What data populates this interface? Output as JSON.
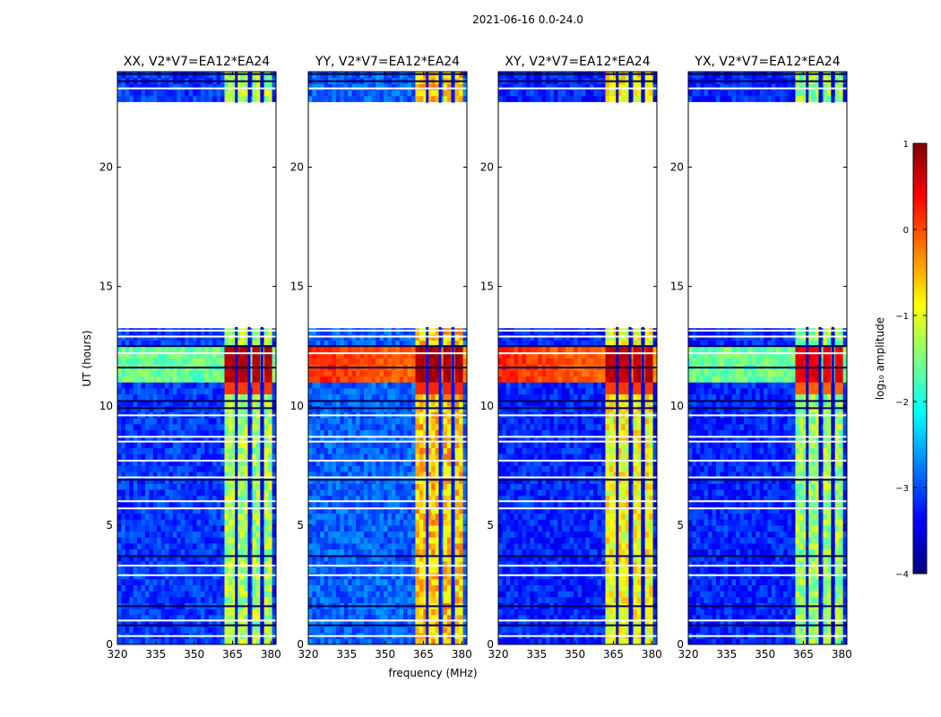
{
  "chart_data": {
    "type": "heatmap",
    "title": "2021-06-16 0.0-24.0",
    "xlabel": "frequency (MHz)",
    "ylabel": "UT (hours)",
    "xlim": [
      320,
      382
    ],
    "ylim": [
      0,
      24
    ],
    "xticks": [
      320,
      335,
      350,
      365,
      380
    ],
    "yticks": [
      0,
      5,
      10,
      15,
      20
    ],
    "colorbar": {
      "label": "log₁₀ amplitude",
      "range": [
        -4,
        1
      ],
      "ticks": [
        "1",
        "0",
        "−1",
        "−2",
        "−3",
        "−4"
      ],
      "colormap": "jet",
      "colors": [
        "#00007f",
        "#0000ff",
        "#007fff",
        "#00ffff",
        "#7fff7f",
        "#ffff00",
        "#ff7f00",
        "#ff0000",
        "#7f0000"
      ]
    },
    "data_gap_hours": [
      13.3,
      22.7
    ],
    "rfi_bands_mhz": [
      [
        361.5,
        366.0
      ],
      [
        367.0,
        371.0
      ],
      [
        372.0,
        376.0
      ],
      [
        377.0,
        381.0
      ]
    ],
    "panels": [
      {
        "title": "XX, V2*V7=EA12*EA24",
        "background_level": -3.1,
        "band_level": -1.3,
        "storm_level": 0.7,
        "storm_hours": [
          10.9,
          12.3
        ]
      },
      {
        "title": "YY, V2*V7=EA12*EA24",
        "background_level": -2.9,
        "band_level": -0.6,
        "storm_level": 0.8,
        "storm_hours": [
          10.9,
          12.3
        ]
      },
      {
        "title": "XY, V2*V7=EA12*EA24",
        "background_level": -3.2,
        "band_level": -0.9,
        "storm_level": 0.7,
        "storm_hours": [
          10.9,
          12.3
        ]
      },
      {
        "title": "YX, V2*V7=EA12*EA24",
        "background_level": -3.2,
        "band_level": -1.4,
        "storm_level": 0.5,
        "storm_hours": [
          10.9,
          12.3
        ]
      }
    ]
  }
}
